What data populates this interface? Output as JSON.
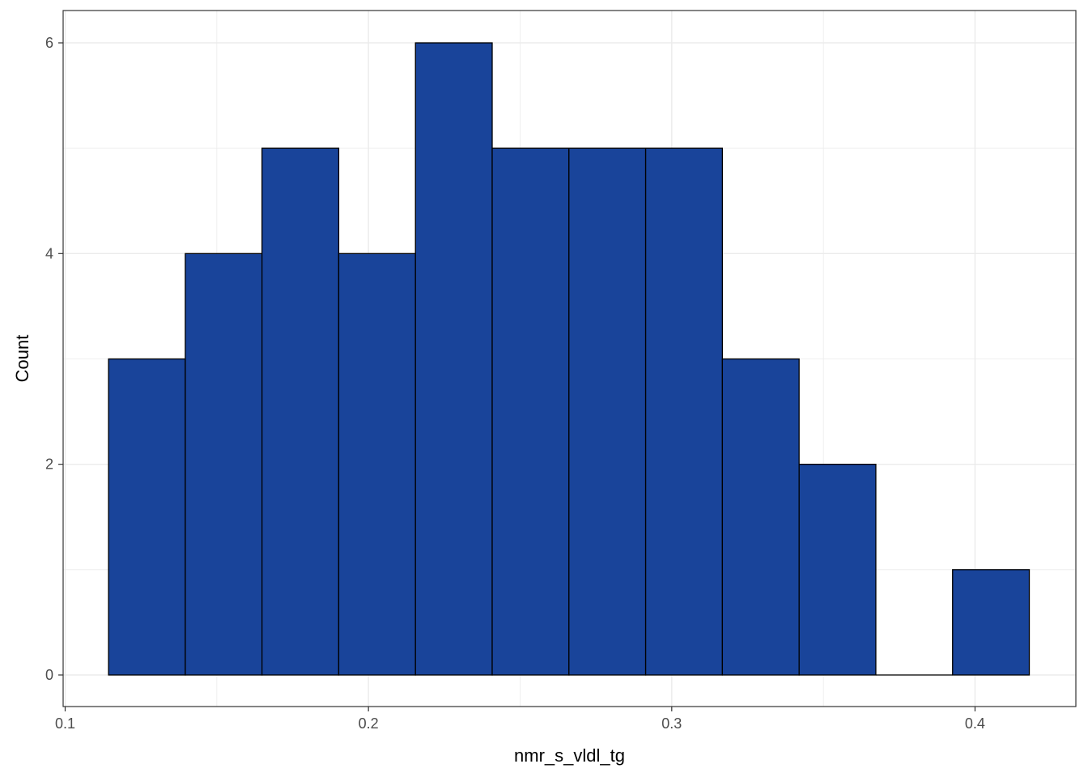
{
  "chart_data": {
    "type": "bar",
    "subtype": "histogram",
    "title": "",
    "xlabel": "nmr_s_vldl_tg",
    "ylabel": "Count",
    "xlim": [
      0.1,
      0.42
    ],
    "ylim": [
      0,
      6
    ],
    "x_ticks": [
      0.1,
      0.2,
      0.3,
      0.4
    ],
    "x_tick_labels": [
      "0.1",
      "0.2",
      "0.3",
      "0.4"
    ],
    "y_ticks": [
      0,
      2,
      4,
      6
    ],
    "y_tick_labels": [
      "0",
      "2",
      "4",
      "6"
    ],
    "grid": true,
    "legend": "none",
    "bin_width": 0.0253,
    "bins": [
      {
        "x_start": 0.1143,
        "x_end": 0.1396,
        "count": 3
      },
      {
        "x_start": 0.1396,
        "x_end": 0.1649,
        "count": 4
      },
      {
        "x_start": 0.1649,
        "x_end": 0.1902,
        "count": 5
      },
      {
        "x_start": 0.1902,
        "x_end": 0.2155,
        "count": 4
      },
      {
        "x_start": 0.2155,
        "x_end": 0.2408,
        "count": 6
      },
      {
        "x_start": 0.2408,
        "x_end": 0.2661,
        "count": 5
      },
      {
        "x_start": 0.2661,
        "x_end": 0.2914,
        "count": 5
      },
      {
        "x_start": 0.2914,
        "x_end": 0.3167,
        "count": 5
      },
      {
        "x_start": 0.3167,
        "x_end": 0.342,
        "count": 3
      },
      {
        "x_start": 0.342,
        "x_end": 0.3673,
        "count": 2
      },
      {
        "x_start": 0.3673,
        "x_end": 0.3926,
        "count": 0
      },
      {
        "x_start": 0.3926,
        "x_end": 0.4179,
        "count": 1
      }
    ],
    "colors": {
      "bar_fill": "#19449a",
      "bar_stroke": "#000000",
      "grid": "#ebebeb",
      "panel_border": "#333333"
    }
  }
}
